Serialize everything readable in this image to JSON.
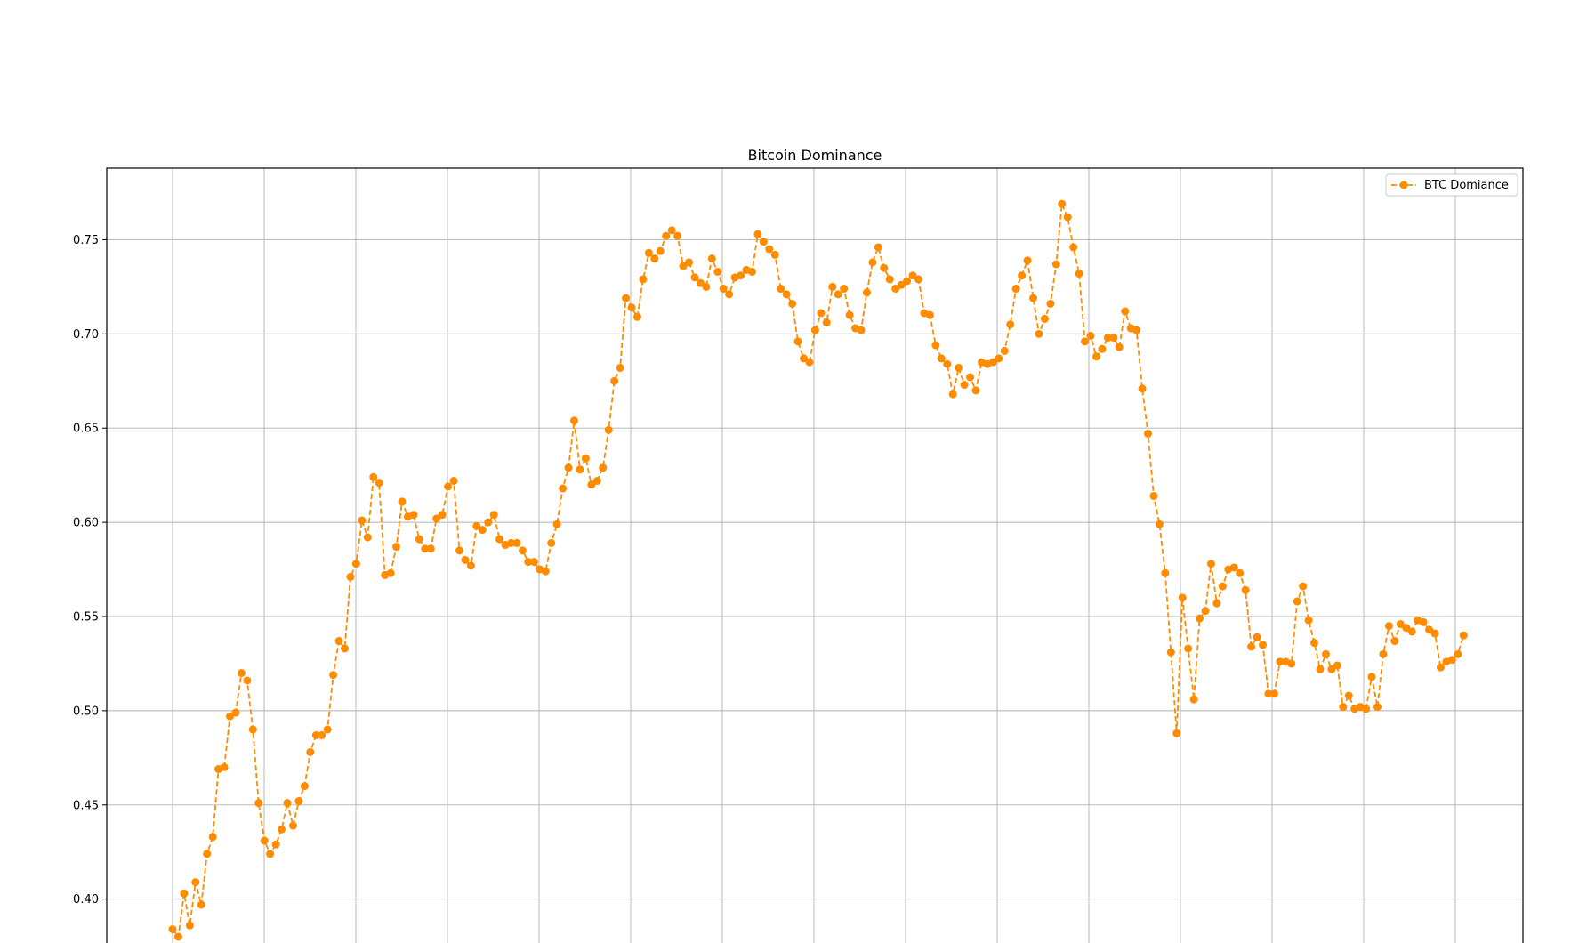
{
  "chart_data": {
    "type": "line",
    "title": "Bitcoin Dominance",
    "xlabel": "",
    "ylabel": "",
    "ylim": [
      0.363,
      0.788
    ],
    "y_ticks": [
      "0.40",
      "0.45",
      "0.50",
      "0.55",
      "0.60",
      "0.65",
      "0.70",
      "0.75"
    ],
    "grid": true,
    "legend_position": "top-right",
    "colors": {
      "series": "#ff8c00",
      "grid": "#b0b0b0",
      "axes": "#000000"
    },
    "series": [
      {
        "name": "BTC Domiance",
        "style": "dashed line with circle markers",
        "values": [
          0.384,
          0.38,
          0.403,
          0.386,
          0.409,
          0.397,
          0.424,
          0.433,
          0.469,
          0.47,
          0.497,
          0.499,
          0.52,
          0.516,
          0.49,
          0.451,
          0.431,
          0.424,
          0.429,
          0.437,
          0.451,
          0.439,
          0.452,
          0.46,
          0.478,
          0.487,
          0.487,
          0.49,
          0.519,
          0.537,
          0.533,
          0.571,
          0.578,
          0.601,
          0.592,
          0.624,
          0.621,
          0.572,
          0.573,
          0.587,
          0.611,
          0.603,
          0.604,
          0.591,
          0.586,
          0.586,
          0.602,
          0.604,
          0.619,
          0.622,
          0.585,
          0.58,
          0.577,
          0.598,
          0.596,
          0.6,
          0.604,
          0.591,
          0.588,
          0.589,
          0.589,
          0.585,
          0.579,
          0.579,
          0.575,
          0.574,
          0.589,
          0.599,
          0.618,
          0.629,
          0.654,
          0.628,
          0.634,
          0.62,
          0.622,
          0.629,
          0.649,
          0.675,
          0.682,
          0.719,
          0.714,
          0.709,
          0.729,
          0.743,
          0.74,
          0.744,
          0.752,
          0.755,
          0.752,
          0.736,
          0.738,
          0.73,
          0.727,
          0.725,
          0.74,
          0.733,
          0.724,
          0.721,
          0.73,
          0.731,
          0.734,
          0.733,
          0.753,
          0.749,
          0.745,
          0.742,
          0.724,
          0.721,
          0.716,
          0.696,
          0.687,
          0.685,
          0.702,
          0.711,
          0.706,
          0.725,
          0.721,
          0.724,
          0.71,
          0.703,
          0.702,
          0.722,
          0.738,
          0.746,
          0.735,
          0.729,
          0.724,
          0.726,
          0.728,
          0.731,
          0.729,
          0.711,
          0.71,
          0.694,
          0.687,
          0.684,
          0.668,
          0.682,
          0.673,
          0.677,
          0.67,
          0.685,
          0.684,
          0.685,
          0.687,
          0.691,
          0.705,
          0.724,
          0.731,
          0.739,
          0.719,
          0.7,
          0.708,
          0.716,
          0.737,
          0.769,
          0.762,
          0.746,
          0.732,
          0.696,
          0.699,
          0.688,
          0.692,
          0.698,
          0.698,
          0.693,
          0.712,
          0.703,
          0.702,
          0.671,
          0.647,
          0.614,
          0.599,
          0.573,
          0.531,
          0.488,
          0.56,
          0.533,
          0.506,
          0.549,
          0.553,
          0.578,
          0.557,
          0.566,
          0.575,
          0.576,
          0.573,
          0.564,
          0.534,
          0.539,
          0.535,
          0.509,
          0.509,
          0.526,
          0.526,
          0.525,
          0.558,
          0.566,
          0.548,
          0.536,
          0.522,
          0.53,
          0.522,
          0.524,
          0.502,
          0.508,
          0.501,
          0.502,
          0.501,
          0.518,
          0.502,
          0.53,
          0.545,
          0.537,
          0.546,
          0.544,
          0.542,
          0.548,
          0.547,
          0.543,
          0.541,
          0.523,
          0.526,
          0.527,
          0.53,
          0.54
        ]
      }
    ]
  }
}
